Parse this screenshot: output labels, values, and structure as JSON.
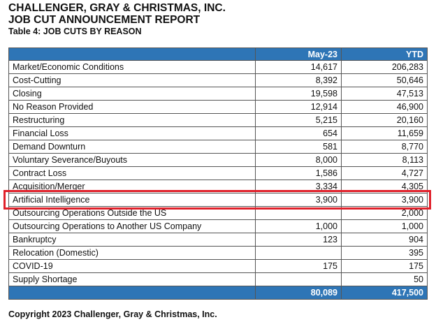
{
  "header": {
    "company": "CHALLENGER, GRAY & CHRISTMAS, INC.",
    "report": "JOB CUT ANNOUNCEMENT REPORT",
    "table_title": "Table 4: JOB CUTS BY REASON"
  },
  "table": {
    "columns": [
      "May-23",
      "YTD"
    ],
    "rows": [
      [
        "Market/Economic Conditions",
        "14,617",
        "206,283"
      ],
      [
        "Cost-Cutting",
        "8,392",
        "50,646"
      ],
      [
        "Closing",
        "19,598",
        "47,513"
      ],
      [
        "No Reason Provided",
        "12,914",
        "46,900"
      ],
      [
        "Restructuring",
        "5,215",
        "20,160"
      ],
      [
        "Financial Loss",
        "654",
        "11,659"
      ],
      [
        "Demand Downturn",
        "581",
        "8,770"
      ],
      [
        "Voluntary Severance/Buyouts",
        "8,000",
        "8,113"
      ],
      [
        "Contract Loss",
        "1,586",
        "4,727"
      ],
      [
        "Acquisition/Merger",
        "3,334",
        "4,305"
      ],
      [
        "Artificial Intelligence",
        "3,900",
        "3,900"
      ],
      [
        "Outsourcing Operations Outside the US",
        null,
        "2,000"
      ],
      [
        "Outsourcing Operations to Another US Company",
        "1,000",
        "1,000"
      ],
      [
        "Bankruptcy",
        "123",
        "904"
      ],
      [
        "Relocation (Domestic)",
        null,
        "395"
      ],
      [
        "COVID-19",
        "175",
        "175"
      ],
      [
        "Supply Shortage",
        null,
        "50"
      ]
    ],
    "totals": [
      "80,089",
      "417,500"
    ]
  },
  "footer": {
    "copyright": "Copyright 2023 Challenger, Gray & Christmas, Inc."
  }
}
